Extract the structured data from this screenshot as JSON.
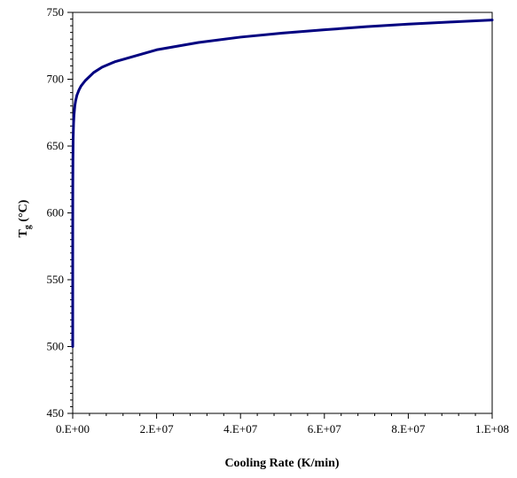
{
  "chart_data": {
    "type": "line",
    "title": "",
    "xlabel": "Cooling Rate (K/min)",
    "ylabel_main": "T",
    "ylabel_sub": "g",
    "ylabel_unit": " (°C)",
    "xlim": [
      0,
      100000000
    ],
    "ylim": [
      450,
      750
    ],
    "x_ticks": [
      0,
      20000000,
      40000000,
      60000000,
      80000000,
      100000000
    ],
    "x_tick_labels": [
      "0.E+00",
      "2.E+07",
      "4.E+07",
      "6.E+07",
      "8.E+07",
      "1.E+08"
    ],
    "y_ticks": [
      450,
      500,
      550,
      600,
      650,
      700,
      750
    ],
    "y_tick_labels": [
      "450",
      "500",
      "550",
      "600",
      "650",
      "700",
      "750"
    ],
    "grid": false,
    "legend": "none",
    "series": [
      {
        "color": "#000080",
        "x": [
          0,
          1000,
          5000,
          10000,
          20000,
          50000,
          100000,
          200000,
          300000,
          500000,
          700000,
          1000000,
          1500000,
          2000000,
          3000000,
          5000000,
          7000000,
          10000000,
          20000000,
          30000000,
          40000000,
          50000000,
          60000000,
          70000000,
          80000000,
          90000000,
          100000000
        ],
        "y": [
          500,
          560,
          590,
          605,
          620,
          640,
          655,
          667,
          673,
          680,
          684,
          688,
          692,
          695,
          699,
          705,
          709,
          713,
          722,
          727.5,
          731.5,
          734.5,
          737,
          739.3,
          741.2,
          742.8,
          744.3
        ]
      }
    ]
  }
}
